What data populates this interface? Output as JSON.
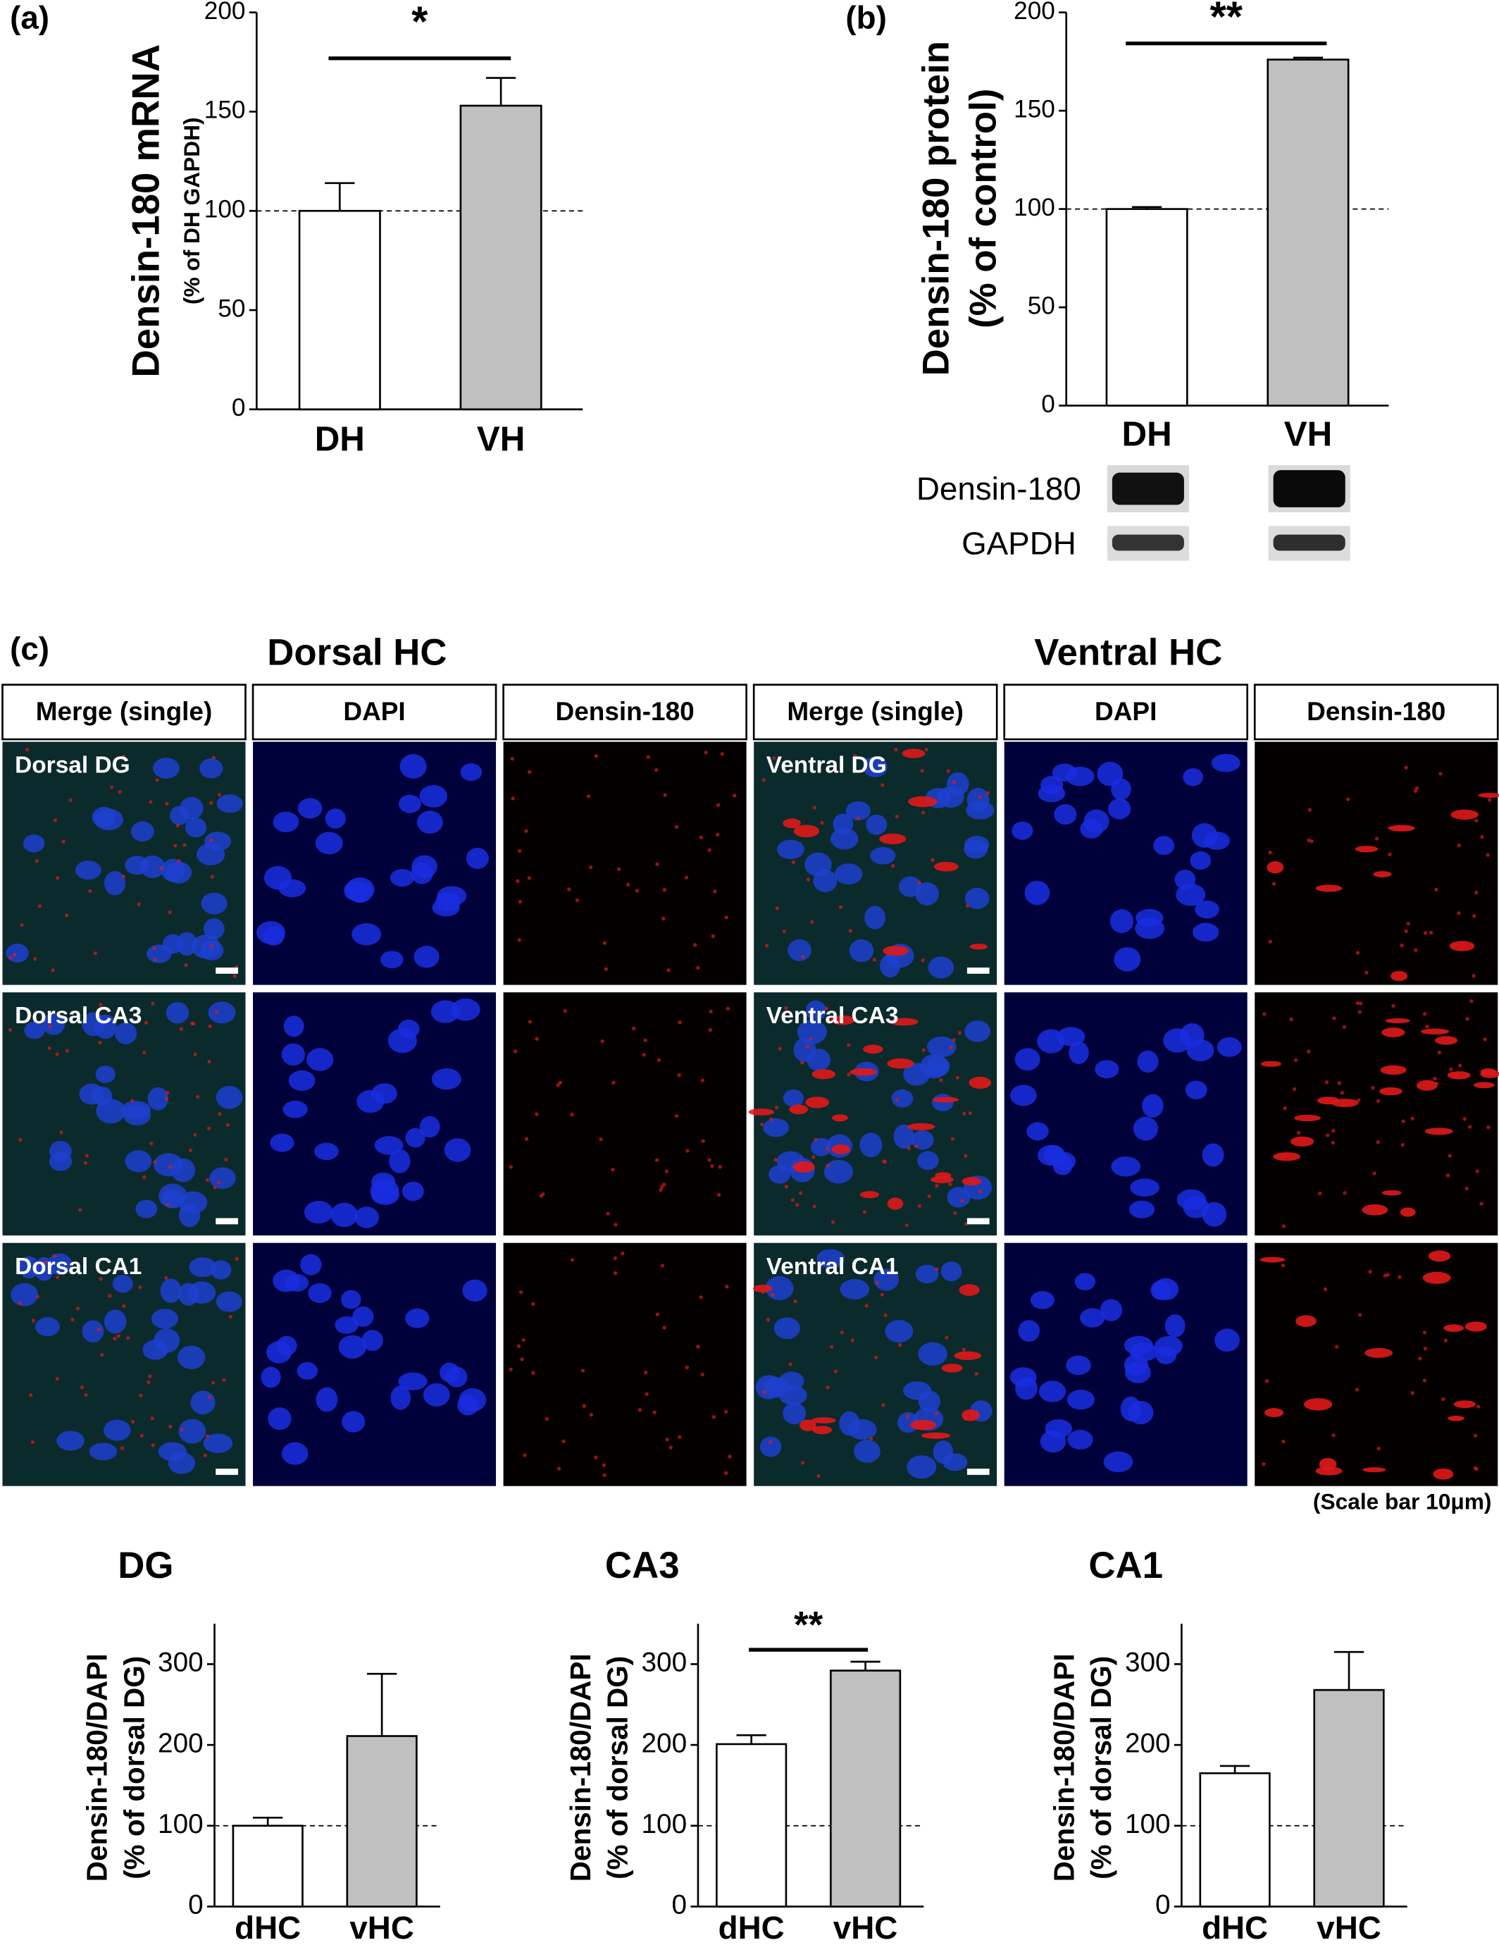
{
  "chart_data": [
    {
      "type": "bar",
      "panel_label": "(a)",
      "ylabel": [
        "Densin-180 mRNA",
        "(% of DH GAPDH)"
      ],
      "categories": [
        "DH",
        "VH"
      ],
      "values": [
        100,
        153
      ],
      "errors": [
        14,
        14
      ],
      "colors": [
        "#ffffff",
        "#c0c0c0"
      ],
      "ylim": [
        0,
        200
      ],
      "yticks": [
        0,
        50,
        100,
        150,
        200
      ],
      "ref_line": 100,
      "significance": "*"
    },
    {
      "type": "bar",
      "panel_label": "(b)",
      "ylabel": [
        "Densin-180 protein",
        "(% of control)"
      ],
      "categories": [
        "DH",
        "VH"
      ],
      "values": [
        100,
        176
      ],
      "errors": [
        1,
        1
      ],
      "colors": [
        "#ffffff",
        "#c0c0c0"
      ],
      "ylim": [
        0,
        200
      ],
      "yticks": [
        0,
        50,
        100,
        150,
        200
      ],
      "ref_line": 100,
      "significance": "**"
    },
    {
      "type": "bar",
      "title": "DG",
      "ylabel": [
        "Densin-180/DAPI",
        "(% of dorsal DG)"
      ],
      "categories": [
        "dHC",
        "vHC"
      ],
      "values": [
        100,
        211
      ],
      "errors": [
        10,
        77
      ],
      "colors": [
        "#ffffff",
        "#c0c0c0"
      ],
      "ylim": [
        0,
        350
      ],
      "yticks": [
        0,
        100,
        200,
        300
      ],
      "ref_line": 100
    },
    {
      "type": "bar",
      "title": "CA3",
      "ylabel": [
        "Densin-180/DAPI",
        "(% of dorsal DG)"
      ],
      "categories": [
        "dHC",
        "vHC"
      ],
      "values": [
        201,
        292
      ],
      "errors": [
        11,
        11
      ],
      "colors": [
        "#ffffff",
        "#c0c0c0"
      ],
      "ylim": [
        0,
        350
      ],
      "yticks": [
        0,
        100,
        200,
        300
      ],
      "ref_line": 100,
      "significance": "**"
    },
    {
      "type": "bar",
      "title": "CA1",
      "ylabel": [
        "Densin-180/DAPI",
        "(% of dorsal DG)"
      ],
      "categories": [
        "dHC",
        "vHC"
      ],
      "values": [
        165,
        268
      ],
      "errors": [
        9,
        47
      ],
      "colors": [
        "#ffffff",
        "#c0c0c0"
      ],
      "ylim": [
        0,
        350
      ],
      "yticks": [
        0,
        100,
        200,
        300
      ],
      "ref_line": 100
    }
  ],
  "western_blot": {
    "labels": [
      "Densin-180",
      "GAPDH"
    ]
  },
  "microscopy": {
    "panel_label": "(c)",
    "groups": [
      "Dorsal HC",
      "Ventral HC"
    ],
    "columns": [
      "Merge (single)",
      "DAPI",
      "Densin-180",
      "Merge (single)",
      "DAPI",
      "Densin-180"
    ],
    "dorsal_rows": [
      "Dorsal DG",
      "Dorsal CA3",
      "Dorsal CA1"
    ],
    "ventral_rows": [
      "Ventral DG",
      "Ventral CA3",
      "Ventral CA1"
    ],
    "scale_note": "(Scale bar 10μm)"
  }
}
